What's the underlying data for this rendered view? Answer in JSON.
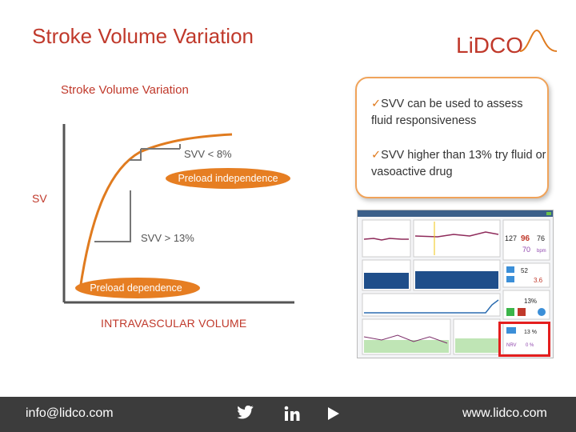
{
  "slide": {
    "title": "Stroke Volume Variation"
  },
  "logo": {
    "text": "LiDCO",
    "color": "#c0392b"
  },
  "chart": {
    "title": "Stroke Volume Variation",
    "y_axis_label": "SV",
    "x_axis_label": "INTRAVASCULAR VOLUME",
    "upper_step_label": "SVV < 8%",
    "lower_step_label": "SVV > 13%",
    "preload_independence": "Preload independence",
    "preload_dependence": "Preload dependence",
    "curve_color": "#e07b1f",
    "axis_color": "#555555"
  },
  "callout": {
    "check_icon": "check-icon",
    "bullets": [
      "SVV can be used to assess fluid responsiveness",
      "SVV higher than 13% try fluid or vasoactive drug"
    ]
  },
  "monitor": {
    "values": {
      "map": "127",
      "hr": "96",
      "sv": "76",
      "bp": "70",
      "bpm": "bpm",
      "co": "52",
      "ci": "3.6",
      "svv": "13%",
      "highlight_svv": "13 %",
      "highlight_ppv": "NRV",
      "highlight_ppv_val": "0 %"
    }
  },
  "footer": {
    "email": "info@lidco.com",
    "website": "www.lidco.com"
  }
}
